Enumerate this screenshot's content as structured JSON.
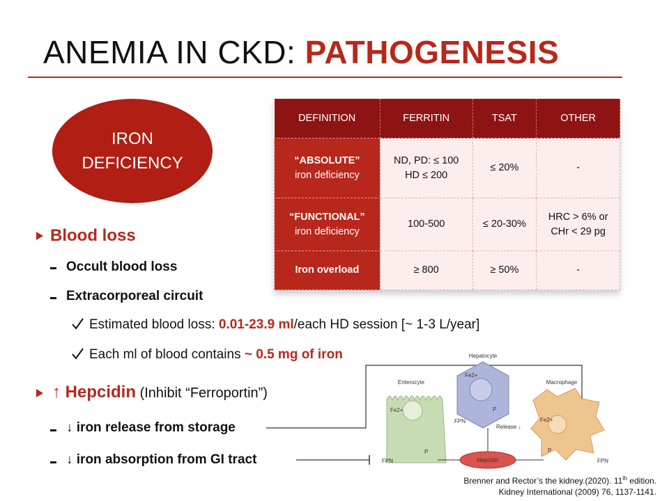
{
  "title": {
    "plain": "ANEMIA IN CKD:",
    "highlight": "PATHOGENESIS"
  },
  "oval": [
    "IRON",
    "DEFICIENCY"
  ],
  "table": {
    "header": [
      "DEFINITION",
      "FERRITIN",
      "TSAT",
      "OTHER"
    ],
    "rows": [
      [
        [
          "“ABSOLUTE”",
          "iron deficiency"
        ],
        [
          "ND, PD: ≤ 100",
          "HD ≤ 200"
        ],
        [
          "≤ 20%"
        ],
        [
          "-"
        ]
      ],
      [
        [
          "“FUNCTIONAL”",
          "iron deficiency"
        ],
        [
          "100-500"
        ],
        [
          "≤ 20-30%"
        ],
        [
          "HRC > 6% or",
          "CHr < 29 pg"
        ]
      ],
      [
        [
          "Iron overload"
        ],
        [
          "≥ 800"
        ],
        [
          "≥ 50%"
        ],
        [
          "-"
        ]
      ]
    ]
  },
  "bullets": {
    "blood_loss": {
      "heading": "Blood loss",
      "items": [
        "Occult blood loss",
        "Extracorporeal circuit"
      ],
      "checks": [
        [
          "Estimated blood loss: ",
          "0.01-23.9 ml",
          "/each HD session [~ 1-3 L/year]"
        ],
        [
          "Each ml of blood contains ",
          "~ 0.5 mg of iron"
        ]
      ]
    },
    "hepcidin": {
      "heading": "↑ Hepcidin",
      "note": " (Inhibit “Ferroportin”)",
      "items": [
        "↓ iron release from storage",
        "↓ iron absorption from GI tract"
      ]
    }
  },
  "diagram": {
    "cells": [
      "Enterocyte",
      "Hepatocyte",
      "Macrophage"
    ],
    "iron": "Fe2+",
    "transporter": "FPN",
    "phospho": "P",
    "release": "Release ↓",
    "hormone": "Hepcidin"
  },
  "references": [
    [
      "Brenner and Rector’s the kidney.(2020). 11",
      "th",
      " edition."
    ],
    [
      "Kidney International (2009) 76, 1137-1141."
    ]
  ]
}
